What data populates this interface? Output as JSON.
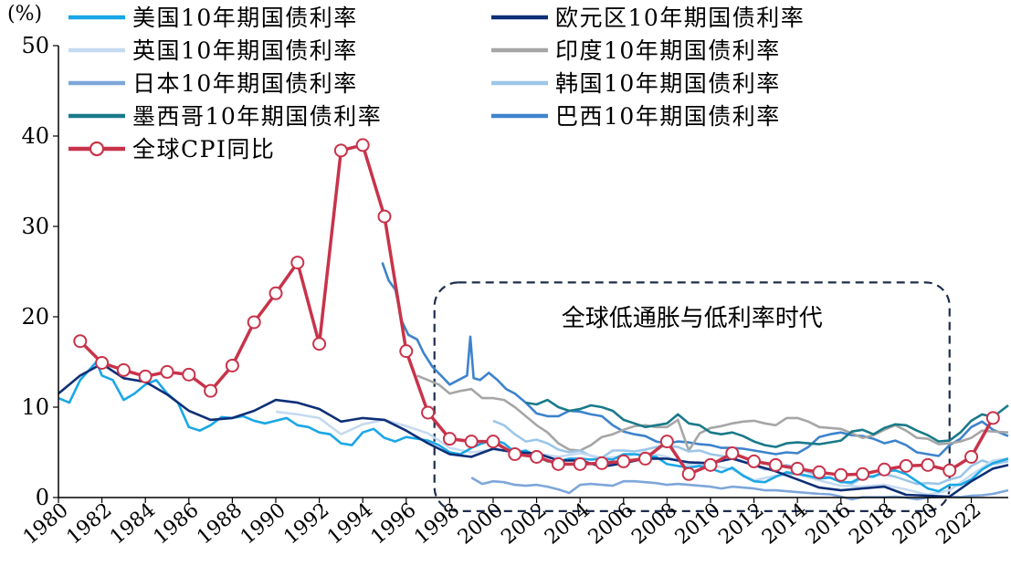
{
  "chart_data": {
    "type": "line",
    "title": "",
    "ylabel": "(%)",
    "xlabel": "",
    "ylim": [
      0,
      50
    ],
    "xlim": [
      1980,
      2023.7
    ],
    "y_ticks": [
      "0",
      "10",
      "20",
      "30",
      "40",
      "50"
    ],
    "x_ticks": [
      "1980",
      "1982",
      "1984",
      "1986",
      "1988",
      "1990",
      "1992",
      "1994",
      "1996",
      "1998",
      "2000",
      "2002",
      "2004",
      "2006",
      "2008",
      "2010",
      "2012",
      "2014",
      "2016",
      "2018",
      "2020",
      "2022"
    ],
    "legend_position": "top-left",
    "grid": false,
    "annotation": {
      "text": "全球低通胀与低利率时代",
      "x_range": [
        1997.3,
        2021.0
      ],
      "y_range": [
        -1.5,
        23.8
      ]
    },
    "series": [
      {
        "name": "美国10年期国债利率",
        "color": "#1aa7e6",
        "x": [
          1980,
          1980.5,
          1981,
          1981.75,
          1982,
          1982.5,
          1983,
          1983.5,
          1984,
          1984.5,
          1985,
          1985.5,
          1986,
          1986.5,
          1987,
          1987.5,
          1988,
          1988.5,
          1989,
          1989.5,
          1990,
          1990.5,
          1991,
          1991.5,
          1992,
          1992.5,
          1993,
          1993.5,
          1994,
          1994.5,
          1995,
          1995.5,
          1996,
          1996.5,
          1997,
          1997.5,
          1998,
          1998.5,
          1999,
          1999.5,
          2000,
          2000.5,
          2001,
          2001.5,
          2002,
          2002.5,
          2003,
          2003.5,
          2004,
          2004.5,
          2005,
          2005.5,
          2006,
          2006.5,
          2007,
          2007.5,
          2008,
          2008.5,
          2009,
          2009.5,
          2010,
          2010.5,
          2011,
          2011.5,
          2012,
          2012.5,
          2013,
          2013.5,
          2014,
          2014.5,
          2015,
          2015.5,
          2016,
          2016.5,
          2017,
          2017.5,
          2018,
          2018.5,
          2019,
          2019.5,
          2020,
          2020.5,
          2021,
          2021.5,
          2022,
          2022.5,
          2023,
          2023.7
        ],
        "y": [
          11.0,
          10.5,
          13.0,
          15.0,
          13.5,
          13.0,
          10.8,
          11.5,
          12.5,
          13.0,
          11.5,
          10.5,
          7.8,
          7.4,
          8.0,
          8.9,
          8.8,
          9.0,
          8.5,
          8.2,
          8.5,
          8.8,
          8.0,
          7.8,
          7.2,
          7.0,
          6.0,
          5.8,
          7.2,
          7.6,
          6.6,
          6.2,
          6.7,
          6.5,
          6.3,
          5.8,
          5.0,
          4.8,
          5.5,
          6.0,
          6.4,
          6.0,
          5.0,
          5.2,
          4.6,
          4.0,
          4.0,
          4.3,
          4.3,
          4.2,
          4.3,
          4.2,
          4.8,
          4.8,
          4.6,
          4.5,
          3.7,
          3.5,
          3.3,
          3.5,
          3.2,
          2.8,
          3.3,
          2.4,
          1.8,
          1.7,
          2.3,
          2.8,
          2.6,
          2.4,
          2.1,
          2.2,
          1.7,
          1.7,
          2.3,
          2.3,
          2.9,
          3.0,
          2.6,
          1.8,
          1.0,
          0.7,
          1.4,
          1.4,
          2.0,
          3.1,
          3.8,
          4.3
        ]
      },
      {
        "name": "欧元区10年期国债利率",
        "color": "#0d2f77",
        "x": [
          1980,
          1981,
          1982,
          1983,
          1984,
          1985,
          1986,
          1987,
          1988,
          1989,
          1990,
          1991,
          1992,
          1993,
          1994,
          1995,
          1996,
          1997,
          1998,
          1999,
          2000,
          2001,
          2002,
          2003,
          2004,
          2005,
          2006,
          2007,
          2008,
          2009,
          2010,
          2011,
          2012,
          2013,
          2014,
          2015,
          2016,
          2017,
          2018,
          2019,
          2020,
          2021,
          2022,
          2023,
          2023.7
        ],
        "y": [
          11.5,
          13.5,
          14.8,
          13.2,
          12.8,
          11.4,
          9.6,
          8.6,
          8.8,
          9.6,
          10.8,
          10.5,
          9.8,
          8.4,
          8.8,
          8.6,
          7.4,
          6.0,
          4.8,
          4.5,
          5.4,
          5.0,
          4.9,
          4.1,
          4.1,
          3.4,
          3.8,
          4.3,
          4.3,
          3.9,
          3.8,
          4.3,
          3.6,
          2.9,
          2.0,
          1.1,
          0.8,
          1.0,
          1.2,
          0.3,
          0.2,
          0.1,
          1.8,
          3.2,
          3.6
        ]
      },
      {
        "name": "英国10年期国债利率",
        "color": "#c5daf0",
        "x": [
          1990,
          1991,
          1992,
          1993,
          1994,
          1995,
          1996,
          1997,
          1998,
          1999,
          2000,
          2001,
          2002,
          2003,
          2004,
          2005,
          2006,
          2007,
          2008,
          2009,
          2010,
          2011,
          2012,
          2013,
          2014,
          2015,
          2016,
          2017,
          2018,
          2019,
          2020,
          2021,
          2022,
          2023,
          2023.7
        ],
        "y": [
          9.5,
          9.2,
          8.8,
          7.0,
          8.1,
          8.6,
          7.9,
          7.1,
          5.5,
          5.0,
          5.3,
          5.0,
          4.9,
          4.5,
          4.9,
          4.4,
          4.5,
          5.0,
          4.5,
          3.6,
          3.6,
          3.1,
          1.9,
          2.4,
          2.6,
          1.9,
          1.3,
          1.2,
          1.4,
          0.9,
          0.3,
          0.8,
          2.5,
          4.1,
          4.3
        ]
      },
      {
        "name": "印度10年期国债利率",
        "color": "#a6a6a6",
        "x": [
          1996.5,
          1997,
          1997.5,
          1998,
          1998.5,
          1999,
          1999.5,
          2000,
          2000.5,
          2001,
          2001.5,
          2002,
          2002.5,
          2003,
          2003.5,
          2004,
          2004.5,
          2005,
          2005.5,
          2006,
          2006.5,
          2007,
          2007.5,
          2008,
          2008.5,
          2009,
          2009.5,
          2010,
          2010.5,
          2011,
          2011.5,
          2012,
          2012.5,
          2013,
          2013.5,
          2014,
          2014.5,
          2015,
          2015.5,
          2016,
          2016.5,
          2017,
          2017.5,
          2018,
          2018.5,
          2019,
          2019.5,
          2020,
          2020.5,
          2021,
          2021.5,
          2022,
          2022.5,
          2023,
          2023.7
        ],
        "y": [
          13.5,
          13.0,
          12.5,
          11.5,
          11.8,
          12.0,
          11.0,
          11.0,
          10.8,
          10.0,
          9.0,
          8.0,
          7.2,
          6.0,
          5.3,
          5.2,
          5.8,
          6.7,
          7.0,
          7.5,
          7.9,
          8.0,
          7.8,
          7.8,
          8.6,
          5.2,
          7.1,
          7.7,
          7.9,
          8.2,
          8.4,
          8.5,
          8.2,
          8.0,
          8.8,
          8.8,
          8.4,
          7.8,
          7.7,
          7.6,
          7.1,
          6.6,
          6.9,
          7.5,
          8.0,
          7.4,
          6.6,
          6.5,
          5.9,
          6.0,
          6.2,
          6.6,
          7.4,
          7.3,
          7.2
        ]
      },
      {
        "name": "日本10年期国债利率",
        "color": "#7ea6d9",
        "x": [
          1999,
          1999.5,
          2000,
          2000.5,
          2001,
          2001.5,
          2002,
          2002.5,
          2003,
          2003.5,
          2004,
          2004.5,
          2005,
          2005.5,
          2006,
          2006.5,
          2007,
          2007.5,
          2008,
          2008.5,
          2009,
          2009.5,
          2010,
          2010.5,
          2011,
          2011.5,
          2012,
          2012.5,
          2013,
          2013.5,
          2014,
          2014.5,
          2015,
          2015.5,
          2016,
          2016.5,
          2017,
          2017.5,
          2018,
          2018.5,
          2019,
          2019.5,
          2020,
          2020.5,
          2021,
          2021.5,
          2022,
          2022.5,
          2023,
          2023.7
        ],
        "y": [
          2.2,
          1.5,
          1.8,
          1.7,
          1.4,
          1.3,
          1.4,
          1.2,
          0.9,
          0.5,
          1.4,
          1.5,
          1.4,
          1.3,
          1.8,
          1.8,
          1.7,
          1.6,
          1.4,
          1.5,
          1.4,
          1.3,
          1.2,
          1.0,
          1.2,
          1.1,
          1.0,
          0.8,
          0.8,
          0.7,
          0.6,
          0.5,
          0.4,
          0.35,
          0.1,
          -0.2,
          0.05,
          0.05,
          0.05,
          0.1,
          0.0,
          -0.2,
          0.0,
          0.05,
          0.1,
          0.05,
          0.2,
          0.25,
          0.4,
          0.8
        ]
      },
      {
        "name": "韩国10年期国债利率",
        "color": "#9cc6e8",
        "x": [
          2000,
          2000.5,
          2001,
          2001.5,
          2002,
          2002.5,
          2003,
          2003.5,
          2004,
          2004.5,
          2005,
          2005.5,
          2006,
          2006.5,
          2007,
          2007.5,
          2008,
          2008.5,
          2009,
          2009.5,
          2010,
          2010.5,
          2011,
          2011.5,
          2012,
          2012.5,
          2013,
          2013.5,
          2014,
          2014.5,
          2015,
          2015.5,
          2016,
          2016.5,
          2017,
          2017.5,
          2018,
          2018.5,
          2019,
          2019.5,
          2020,
          2020.5,
          2021,
          2021.5,
          2022,
          2022.5,
          2023,
          2023.7
        ],
        "y": [
          8.5,
          8.0,
          7.0,
          6.2,
          6.4,
          6.0,
          5.3,
          5.0,
          5.2,
          4.6,
          4.4,
          5.2,
          5.2,
          5.1,
          5.3,
          5.6,
          5.7,
          5.6,
          5.1,
          5.2,
          4.8,
          4.6,
          4.4,
          4.0,
          3.6,
          3.1,
          3.3,
          3.6,
          3.3,
          2.8,
          2.4,
          2.2,
          1.8,
          1.5,
          2.2,
          2.4,
          2.6,
          2.3,
          1.9,
          1.5,
          1.6,
          1.5,
          2.0,
          2.3,
          3.5,
          4.1,
          3.7,
          4.0
        ]
      },
      {
        "name": "墨西哥10年期国债利率",
        "color": "#197a8a",
        "x": [
          2001.5,
          2002,
          2002.5,
          2003,
          2003.5,
          2004,
          2004.5,
          2005,
          2005.5,
          2006,
          2006.5,
          2007,
          2007.5,
          2008,
          2008.5,
          2009,
          2009.5,
          2010,
          2010.5,
          2011,
          2011.5,
          2012,
          2012.5,
          2013,
          2013.5,
          2014,
          2014.5,
          2015,
          2015.5,
          2016,
          2016.5,
          2017,
          2017.5,
          2018,
          2018.5,
          2019,
          2019.5,
          2020,
          2020.5,
          2021,
          2021.5,
          2022,
          2022.5,
          2023,
          2023.7
        ],
        "y": [
          10.5,
          10.3,
          10.8,
          10.0,
          9.6,
          9.8,
          10.2,
          10.0,
          9.6,
          8.6,
          8.2,
          7.8,
          8.0,
          8.2,
          9.2,
          8.2,
          8.0,
          7.2,
          7.0,
          7.2,
          6.8,
          6.2,
          5.8,
          5.6,
          6.0,
          6.1,
          6.0,
          5.9,
          6.1,
          6.3,
          7.3,
          7.5,
          7.0,
          7.7,
          8.1,
          8.0,
          7.4,
          6.9,
          6.2,
          6.3,
          7.2,
          8.5,
          9.2,
          8.9,
          10.2
        ]
      },
      {
        "name": "巴西10年期国债利率",
        "color": "#3d83cc",
        "x": [
          1994.9,
          1995.2,
          1995.5,
          1995.8,
          1996.1,
          1996.5,
          1996.8,
          1997.2,
          1997.6,
          1998.0,
          1998.4,
          1998.8,
          1998.95,
          1999.1,
          1999.4,
          1999.8,
          2000.2,
          2000.6,
          2001,
          2001.5,
          2002,
          2002.5,
          2003,
          2003.5,
          2004,
          2004.5,
          2005,
          2005.5,
          2006,
          2006.5,
          2007,
          2007.5,
          2008,
          2008.5,
          2009,
          2009.5,
          2010,
          2010.5,
          2011,
          2011.5,
          2012,
          2012.5,
          2013,
          2013.5,
          2014,
          2014.5,
          2015,
          2015.5,
          2016,
          2016.5,
          2017,
          2017.5,
          2018,
          2018.5,
          2019,
          2019.5,
          2020,
          2020.5,
          2021,
          2021.5,
          2022,
          2022.5,
          2023,
          2023.7
        ],
        "y": [
          26.0,
          24.0,
          23.0,
          19.5,
          18.0,
          17.5,
          16.0,
          14.5,
          13.5,
          12.5,
          13.0,
          13.5,
          17.8,
          13.2,
          13.0,
          13.8,
          13.0,
          12.0,
          11.5,
          10.5,
          9.3,
          9.0,
          9.0,
          9.6,
          9.5,
          9.2,
          9.0,
          8.0,
          7.3,
          7.0,
          6.8,
          6.2,
          6.0,
          6.2,
          6.1,
          5.9,
          5.8,
          5.5,
          5.5,
          5.4,
          5.2,
          5.0,
          4.8,
          5.0,
          4.9,
          5.6,
          6.7,
          7.0,
          7.2,
          6.9,
          6.8,
          6.5,
          6.0,
          6.3,
          5.8,
          5.0,
          4.8,
          4.6,
          5.8,
          6.5,
          7.8,
          8.4,
          7.5,
          6.8
        ]
      },
      {
        "name": "全球CPI同比",
        "color": "#c8334a",
        "markers": true,
        "x": [
          1981,
          1982,
          1983,
          1984,
          1985,
          1986,
          1987,
          1988,
          1989,
          1990,
          1991,
          1992,
          1993,
          1994,
          1995,
          1996,
          1997,
          1998,
          1999,
          2000,
          2001,
          2002,
          2003,
          2004,
          2005,
          2006,
          2007,
          2008,
          2009,
          2010,
          2011,
          2012,
          2013,
          2014,
          2015,
          2016,
          2017,
          2018,
          2019,
          2020,
          2021,
          2022,
          2023
        ],
        "y": [
          17.3,
          14.9,
          14.1,
          13.4,
          13.9,
          13.6,
          11.8,
          14.6,
          19.4,
          22.6,
          26.0,
          17.0,
          38.4,
          39.0,
          31.1,
          16.2,
          9.4,
          6.5,
          6.2,
          6.2,
          4.8,
          4.5,
          3.7,
          3.7,
          3.8,
          4.0,
          4.3,
          6.2,
          2.6,
          3.6,
          4.9,
          4.0,
          3.6,
          3.2,
          2.8,
          2.5,
          2.6,
          3.1,
          3.5,
          3.6,
          3.0,
          4.5,
          8.8
        ]
      }
    ]
  }
}
